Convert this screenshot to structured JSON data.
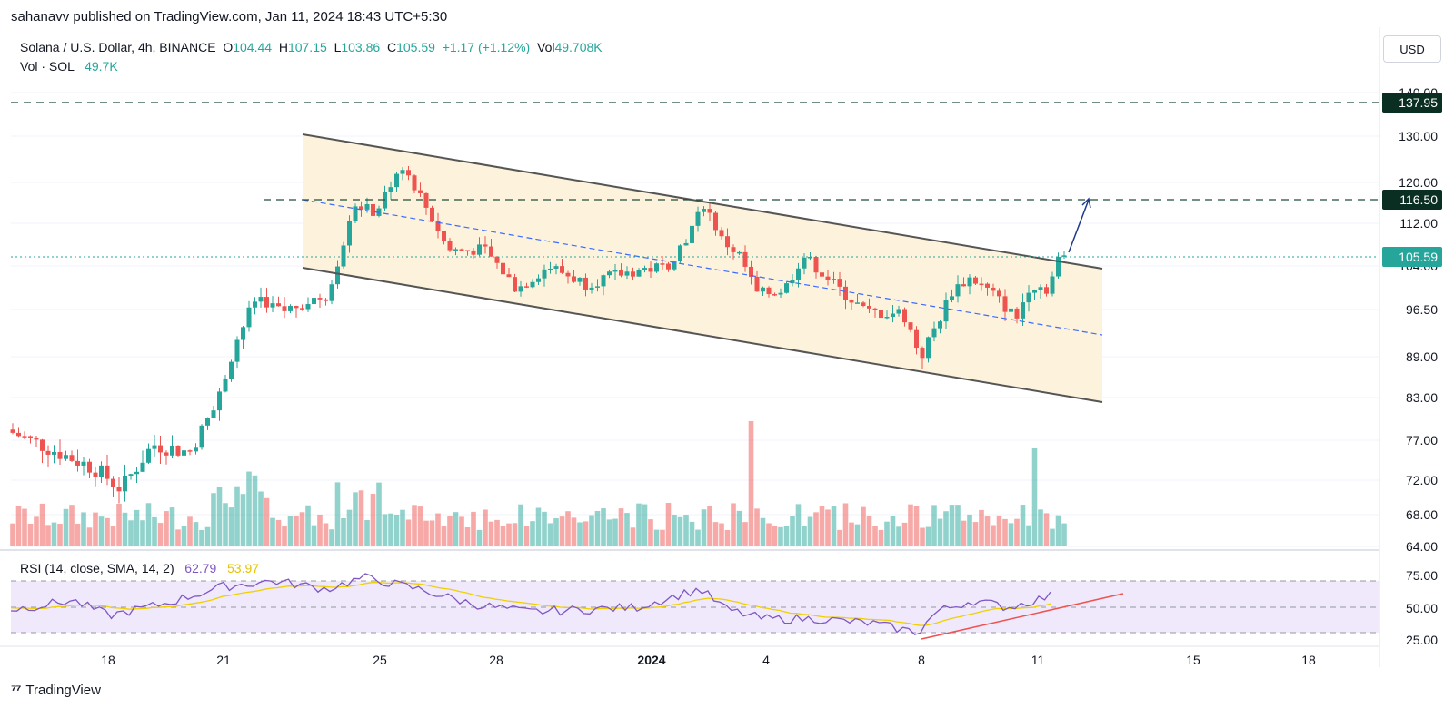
{
  "header": {
    "published": "sahanavv published on TradingView.com, Jan 11, 2024 18:43 UTC+5:30",
    "symbol": "Solana / U.S. Dollar, 4h, BINANCE",
    "o_label": "O",
    "o_val": "104.44",
    "h_label": "H",
    "h_val": "107.15",
    "l_label": "L",
    "l_val": "103.86",
    "c_label": "C",
    "c_val": "105.59",
    "change": "+1.17 (+1.12%)",
    "vol_label": "Vol",
    "vol_val": "49.708K",
    "vol_row_label": "Vol · SOL",
    "vol_row_val": "49.7K"
  },
  "currency_button": "USD",
  "rsi_legend": {
    "label": "RSI (14, close, SMA, 14, 2)",
    "value": "62.79",
    "ma_value": "53.97"
  },
  "footer": {
    "brand": "TradingView"
  },
  "colors": {
    "up": "#26a69a",
    "down": "#ef5350",
    "channel_fill": "#fdf3dc",
    "level": "#1e4d3a",
    "current": "#26a69a",
    "rsi": "#7e57c2",
    "rsi_ma": "#f0d000",
    "rsi_band": "#efe9fb"
  },
  "chart_data": {
    "type": "candlestick",
    "timeframe": "4h",
    "y_ticks": [
      "140.00",
      "130.00",
      "120.00",
      "112.00",
      "104.00",
      "96.50",
      "89.00",
      "83.00",
      "77.00",
      "72.00",
      "68.00",
      "64.00"
    ],
    "x_ticks": [
      "18",
      "21",
      "25",
      "28",
      "2024",
      "4",
      "8",
      "11",
      "15",
      "18"
    ],
    "price_labels": [
      {
        "text": "137.95",
        "style": "level"
      },
      {
        "text": "116.50",
        "style": "level"
      },
      {
        "text": "105.59",
        "style": "current"
      }
    ],
    "rsi": {
      "y_ticks": [
        "75.00",
        "50.00",
        "25.00"
      ],
      "bands": [
        75,
        50,
        30
      ],
      "last": 62.79,
      "ma_last": 53.97
    },
    "annotations": [
      "descending channel",
      "horizontal resistance 137.95",
      "horizontal resistance 116.50",
      "breakout arrow toward 116.50",
      "RSI rising trendline"
    ]
  }
}
